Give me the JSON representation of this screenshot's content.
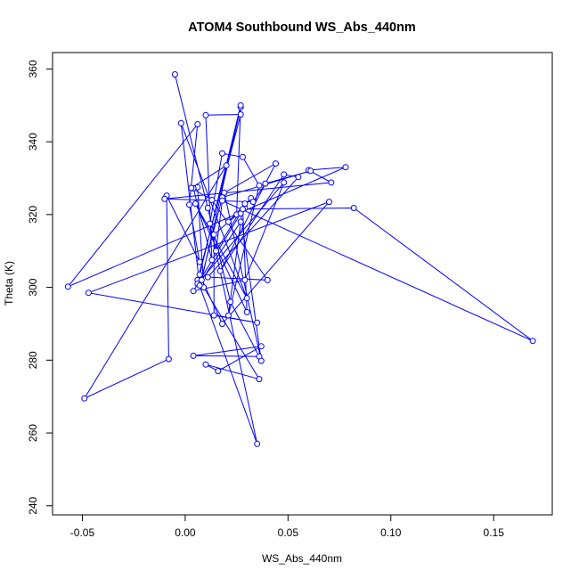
{
  "chart_data": {
    "type": "line",
    "title": "ATOM4 Southbound WS_Abs_440nm",
    "xlabel": "WS_Abs_440nm",
    "ylabel": "Theta (K)",
    "xlim": [
      -0.0645,
      0.1785
    ],
    "ylim": [
      237.5,
      364.5
    ],
    "x_ticks": [
      -0.05,
      0.0,
      0.05,
      0.1,
      0.15
    ],
    "x_tick_labels": [
      "-0.05",
      "0.00",
      "0.05",
      "0.10",
      "0.15"
    ],
    "y_ticks": [
      240,
      260,
      280,
      300,
      320,
      340,
      360
    ],
    "y_tick_labels": [
      "240",
      "260",
      "280",
      "300",
      "320",
      "340",
      "360"
    ],
    "grid": false,
    "marker": "open-circle",
    "series": [
      {
        "color": "#0000ff",
        "points": [
          [
            -0.005,
            358.5
          ],
          [
            0.011,
            321.8
          ],
          [
            0.022,
            296.0
          ],
          [
            0.036,
            281.0
          ],
          [
            0.004,
            281.2
          ],
          [
            0.037,
            283.8
          ],
          [
            0.016,
            277.0
          ],
          [
            0.01,
            278.8
          ],
          [
            0.036,
            274.8
          ],
          [
            0.009,
            300.0
          ],
          [
            0.006,
            327.5
          ],
          [
            0.004,
            327.2
          ],
          [
            0.013,
            307.5
          ],
          [
            0.01,
            347.3
          ],
          [
            0.027,
            347.5
          ],
          [
            0.006,
            302.0
          ],
          [
            0.035,
            257.0
          ],
          [
            0.012,
            317.5
          ],
          [
            0.018,
            336.8
          ],
          [
            0.028,
            335.8
          ],
          [
            0.036,
            328.0
          ],
          [
            0.021,
            292.3
          ],
          [
            0.027,
            318.0
          ],
          [
            0.008,
            302.0
          ],
          [
            0.027,
            349.5
          ],
          [
            0.007,
            303.5
          ],
          [
            0.018,
            290.0
          ],
          [
            0.07,
            323.5
          ],
          [
            -0.047,
            298.5
          ],
          [
            0.035,
            290.3
          ],
          [
            0.014,
            292.3
          ],
          [
            0.014,
            314.5
          ],
          [
            0.029,
            321.8
          ],
          [
            0.021,
            318.0
          ],
          [
            0.032,
            324.5
          ],
          [
            0.025,
            320.0
          ],
          [
            0.027,
            350.0
          ],
          [
            0.006,
            301.0
          ],
          [
            0.048,
            328.8
          ],
          [
            0.029,
            302.0
          ],
          [
            0.004,
            299.0
          ],
          [
            0.027,
            320.3
          ],
          [
            0.037,
            279.8
          ],
          [
            0.019,
            326.0
          ],
          [
            0.044,
            334.0
          ],
          [
            0.017,
            304.5
          ],
          [
            0.048,
            331.0
          ],
          [
            0.055,
            330.3
          ],
          [
            0.011,
            302.8
          ],
          [
            0.04,
            302.0
          ],
          [
            0.013,
            324.0
          ],
          [
            0.003,
            327.3
          ],
          [
            0.02,
            333.5
          ],
          [
            -0.049,
            269.5
          ],
          [
            -0.008,
            280.3
          ],
          [
            -0.009,
            325.2
          ],
          [
            0.007,
            307.0
          ],
          [
            0.002,
            322.7
          ],
          [
            0.006,
            344.8
          ],
          [
            -0.057,
            300.2
          ],
          [
            0.078,
            333.0
          ],
          [
            0.06,
            332.2
          ],
          [
            0.071,
            328.8
          ],
          [
            -0.01,
            324.3
          ],
          [
            0.033,
            323.5
          ],
          [
            0.039,
            328.5
          ],
          [
            0.061,
            332.0
          ],
          [
            0.018,
            324.7
          ],
          [
            0.007,
            300.5
          ],
          [
            -0.002,
            345.1
          ],
          [
            0.03,
            297.0
          ],
          [
            0.005,
            323.0
          ],
          [
            0.03,
            293.2
          ],
          [
            0.028,
            321.5
          ],
          [
            0.082,
            321.8
          ],
          [
            0.169,
            285.3
          ],
          [
            0.018,
            323.8
          ],
          [
            0.015,
            310.0
          ],
          [
            0.029,
            323.0
          ]
        ]
      }
    ]
  }
}
